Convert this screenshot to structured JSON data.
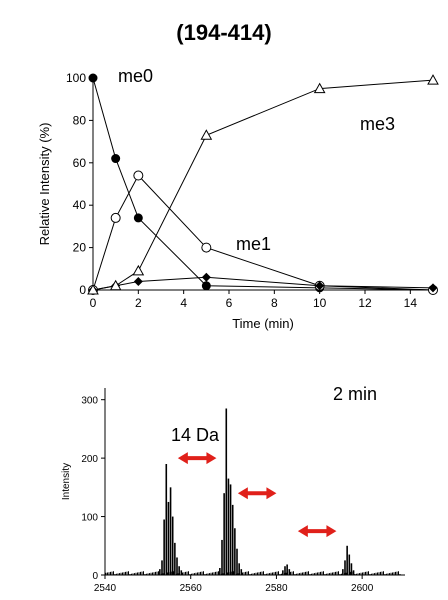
{
  "title": "(194-414)",
  "chart_data": [
    {
      "type": "line",
      "xlabel": "Time (min)",
      "ylabel": "Relative Intensity (%)",
      "xlim": [
        0,
        15
      ],
      "ylim": [
        0,
        100
      ],
      "xticks": [
        0,
        2,
        4,
        6,
        8,
        10,
        12,
        14
      ],
      "yticks": [
        0,
        20,
        40,
        60,
        80,
        100
      ],
      "series": [
        {
          "name": "me0",
          "marker": "filled-circle",
          "x": [
            0,
            1,
            2,
            5,
            10,
            15
          ],
          "y": [
            100,
            62,
            34,
            2,
            1,
            0
          ]
        },
        {
          "name": "me1",
          "marker": "open-circle",
          "x": [
            0,
            1,
            2,
            5,
            10,
            15
          ],
          "y": [
            0,
            34,
            54,
            20,
            2,
            0
          ]
        },
        {
          "name": "",
          "marker": "filled-diamond",
          "x": [
            0,
            1,
            2,
            5,
            10,
            15
          ],
          "y": [
            0,
            2,
            4,
            6,
            2,
            1
          ]
        },
        {
          "name": "me3",
          "marker": "open-triangle",
          "x": [
            0,
            1,
            2,
            5,
            10,
            15
          ],
          "y": [
            0,
            2,
            9,
            73,
            95,
            99
          ]
        }
      ]
    },
    {
      "type": "bar",
      "xlabel": "",
      "ylabel": "Intensity",
      "xlim": [
        2540,
        2610
      ],
      "ylim": [
        0,
        320
      ],
      "xticks": [
        2540,
        2560,
        2580,
        2600
      ],
      "yticks": [
        0,
        100,
        200,
        300
      ],
      "annotation_time": "2 min",
      "annotation_mass": "14 Da",
      "peaks": [
        {
          "x": 2552.8,
          "y": 10
        },
        {
          "x": 2553.3,
          "y": 25
        },
        {
          "x": 2553.8,
          "y": 95
        },
        {
          "x": 2554.3,
          "y": 190
        },
        {
          "x": 2554.8,
          "y": 125
        },
        {
          "x": 2555.3,
          "y": 150
        },
        {
          "x": 2555.8,
          "y": 100
        },
        {
          "x": 2556.3,
          "y": 55
        },
        {
          "x": 2556.8,
          "y": 30
        },
        {
          "x": 2557.3,
          "y": 15
        },
        {
          "x": 2557.8,
          "y": 8
        },
        {
          "x": 2566.8,
          "y": 12
        },
        {
          "x": 2567.3,
          "y": 60
        },
        {
          "x": 2567.8,
          "y": 140
        },
        {
          "x": 2568.3,
          "y": 285
        },
        {
          "x": 2568.8,
          "y": 165
        },
        {
          "x": 2569.3,
          "y": 155
        },
        {
          "x": 2569.8,
          "y": 120
        },
        {
          "x": 2570.3,
          "y": 80
        },
        {
          "x": 2570.8,
          "y": 45
        },
        {
          "x": 2571.3,
          "y": 20
        },
        {
          "x": 2571.8,
          "y": 10
        },
        {
          "x": 2581.5,
          "y": 8
        },
        {
          "x": 2582.0,
          "y": 15
        },
        {
          "x": 2582.5,
          "y": 18
        },
        {
          "x": 2583.0,
          "y": 10
        },
        {
          "x": 2595.5,
          "y": 10
        },
        {
          "x": 2596.0,
          "y": 25
        },
        {
          "x": 2596.5,
          "y": 50
        },
        {
          "x": 2597.0,
          "y": 35
        },
        {
          "x": 2597.5,
          "y": 20
        },
        {
          "x": 2598.0,
          "y": 8
        }
      ],
      "arrows": [
        {
          "x1": 2557,
          "x2": 2566,
          "y": 200
        },
        {
          "x1": 2571,
          "x2": 2580,
          "y": 140
        },
        {
          "x1": 2585,
          "x2": 2594,
          "y": 75
        }
      ]
    }
  ]
}
